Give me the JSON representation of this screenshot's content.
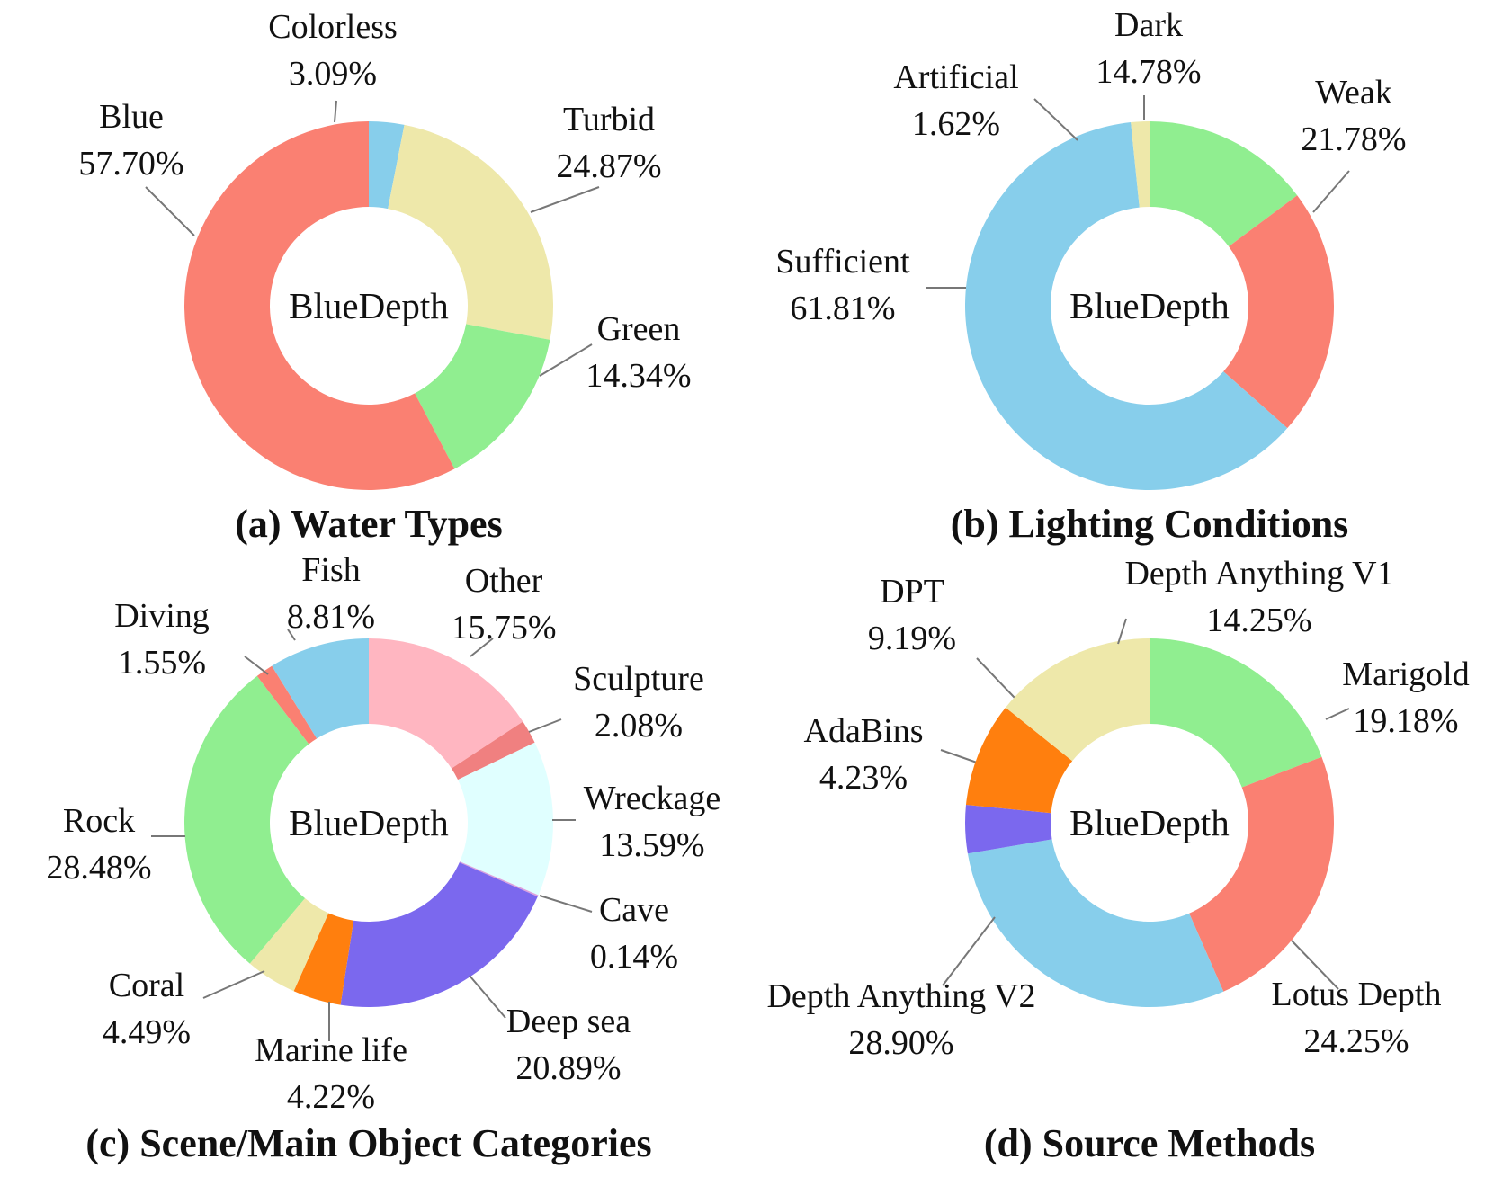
{
  "chart_data": [
    {
      "type": "pie",
      "donut": true,
      "caption": "(a) Water Types",
      "center_label": "BlueDepth",
      "slices": [
        {
          "label": "Colorless",
          "value": 3.09,
          "display": "3.09%",
          "color": "#87ceeb"
        },
        {
          "label": "Turbid",
          "value": 24.87,
          "display": "24.87%",
          "color": "#eee8aa"
        },
        {
          "label": "Green",
          "value": 14.34,
          "display": "14.34%",
          "color": "#90ee90"
        },
        {
          "label": "Blue",
          "value": 57.7,
          "display": "57.70%",
          "color": "#fa8072"
        }
      ]
    },
    {
      "type": "pie",
      "donut": true,
      "caption": "(b) Lighting Conditions",
      "center_label": "BlueDepth",
      "slices": [
        {
          "label": "Dark",
          "value": 14.78,
          "display": "14.78%",
          "color": "#90ee90"
        },
        {
          "label": "Weak",
          "value": 21.78,
          "display": "21.78%",
          "color": "#fa8072"
        },
        {
          "label": "Sufficient",
          "value": 61.81,
          "display": "61.81%",
          "color": "#87ceeb"
        },
        {
          "label": "Artificial",
          "value": 1.62,
          "display": "1.62%",
          "color": "#eee8aa"
        }
      ]
    },
    {
      "type": "pie",
      "donut": true,
      "caption": "(c) Scene/Main Object Categories",
      "center_label": "BlueDepth",
      "slices": [
        {
          "label": "Other",
          "value": 15.75,
          "display": "15.75%",
          "color": "#ffb6c1"
        },
        {
          "label": "Sculpture",
          "value": 2.08,
          "display": "2.08%",
          "color": "#f08080"
        },
        {
          "label": "Wreckage",
          "value": 13.59,
          "display": "13.59%",
          "color": "#e0ffff"
        },
        {
          "label": "Cave",
          "value": 0.14,
          "display": "0.14%",
          "color": "#dda0dd"
        },
        {
          "label": "Deep sea",
          "value": 20.89,
          "display": "20.89%",
          "color": "#7b68ee"
        },
        {
          "label": "Marine life",
          "value": 4.22,
          "display": "4.22%",
          "color": "#ff7f0e"
        },
        {
          "label": "Coral",
          "value": 4.49,
          "display": "4.49%",
          "color": "#eee8aa"
        },
        {
          "label": "Rock",
          "value": 28.48,
          "display": "28.48%",
          "color": "#90ee90"
        },
        {
          "label": "Diving",
          "value": 1.55,
          "display": "1.55%",
          "color": "#fa8072"
        },
        {
          "label": "Fish",
          "value": 8.81,
          "display": "8.81%",
          "color": "#87ceeb"
        }
      ]
    },
    {
      "type": "pie",
      "donut": true,
      "caption": "(d) Source Methods",
      "center_label": "BlueDepth",
      "slices": [
        {
          "label": "Marigold",
          "value": 19.18,
          "display": "19.18%",
          "color": "#90ee90"
        },
        {
          "label": "Lotus Depth",
          "value": 24.25,
          "display": "24.25%",
          "color": "#fa8072"
        },
        {
          "label": "Depth Anything V2",
          "value": 28.9,
          "display": "28.90%",
          "color": "#87ceeb"
        },
        {
          "label": "AdaBins",
          "value": 4.23,
          "display": "4.23%",
          "color": "#7b68ee"
        },
        {
          "label": "DPT",
          "value": 9.19,
          "display": "9.19%",
          "color": "#ff7f0e"
        },
        {
          "label": "Depth Anything V1",
          "value": 14.25,
          "display": "14.25%",
          "color": "#eee8aa"
        }
      ]
    }
  ]
}
